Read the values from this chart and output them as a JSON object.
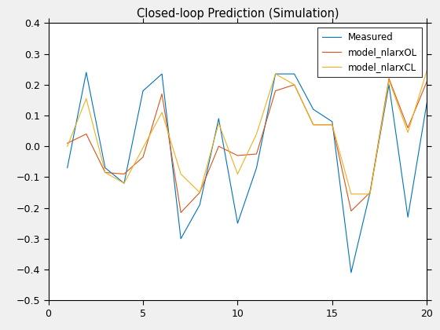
{
  "title": "Closed-loop Prediction (Simulation)",
  "xlim": [
    0,
    20
  ],
  "ylim": [
    -0.5,
    0.4
  ],
  "yticks": [
    -0.5,
    -0.4,
    -0.3,
    -0.2,
    -0.1,
    0.0,
    0.1,
    0.2,
    0.3,
    0.4
  ],
  "xticks": [
    0,
    5,
    10,
    15,
    20
  ],
  "measured_x": [
    1,
    2,
    3,
    4,
    5,
    6,
    7,
    8,
    9,
    10,
    11,
    12,
    13,
    14,
    15,
    16,
    17,
    18,
    19,
    20
  ],
  "measured_y": [
    -0.07,
    0.24,
    -0.07,
    -0.12,
    0.18,
    0.235,
    -0.3,
    -0.19,
    0.09,
    -0.25,
    -0.07,
    0.235,
    0.235,
    0.12,
    0.08,
    -0.41,
    -0.15,
    0.2,
    -0.23,
    0.14
  ],
  "ol_x": [
    1,
    2,
    3,
    4,
    5,
    6,
    7,
    8,
    9,
    10,
    11,
    12,
    13,
    14,
    15,
    16,
    17,
    18,
    19,
    20
  ],
  "ol_y": [
    0.01,
    0.04,
    -0.085,
    -0.09,
    -0.035,
    0.17,
    -0.215,
    -0.15,
    0.0,
    -0.03,
    -0.025,
    0.18,
    0.2,
    0.07,
    0.07,
    -0.21,
    -0.15,
    0.22,
    0.06,
    0.21
  ],
  "cl_x": [
    1,
    2,
    3,
    4,
    5,
    6,
    7,
    8,
    9,
    10,
    11,
    12,
    13,
    14,
    15,
    16,
    17,
    18,
    19,
    20
  ],
  "cl_y": [
    0.0,
    0.155,
    -0.085,
    -0.12,
    -0.005,
    0.11,
    -0.09,
    -0.15,
    0.075,
    -0.09,
    0.04,
    0.235,
    0.2,
    0.07,
    0.07,
    -0.155,
    -0.155,
    0.215,
    0.045,
    0.245
  ],
  "measured_color": "#0072BD",
  "ol_color": "#D95319",
  "cl_color": "#EDB120",
  "linewidth": 0.8,
  "legend_labels": [
    "Measured",
    "model_nlarxOL",
    "model_nlarxCL"
  ],
  "background_color": "#ffffff",
  "figure_facecolor": "#f0f0f0",
  "title_fontsize": 10.5,
  "tick_fontsize": 9,
  "legend_fontsize": 8.5
}
